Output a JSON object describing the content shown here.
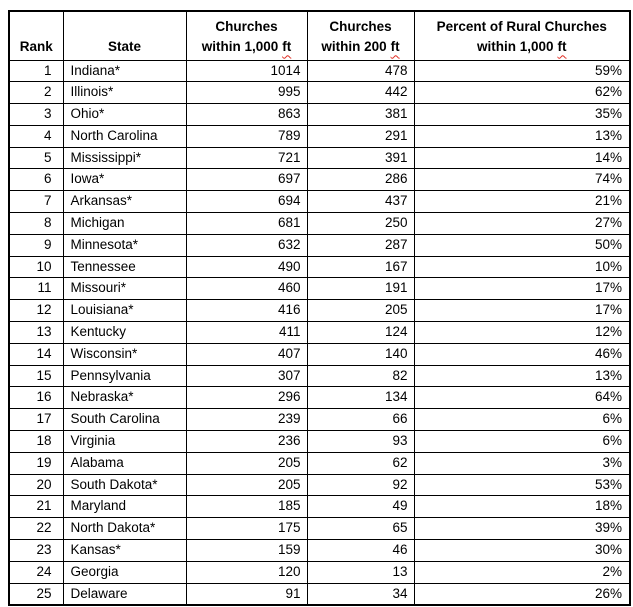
{
  "accent_colors": {
    "grid_line": "#000000",
    "text": "#000000",
    "spellcheck_underline": "#e02b20",
    "background": "#ffffff"
  },
  "table": {
    "headers": {
      "rank": "Rank",
      "state": "State",
      "churches_1000": {
        "line1": "Churches",
        "line2": "within 1,000",
        "unit": "ft"
      },
      "churches_200": {
        "line1": "Churches",
        "line2": "within 200",
        "unit": "ft"
      },
      "percent_rural": {
        "line1": "Percent of Rural Churches",
        "line2": "within 1,000",
        "unit": "ft"
      }
    },
    "field_order": [
      "rank",
      "state",
      "within_1000_ft",
      "within_200_ft",
      "percent_rural"
    ],
    "rows": [
      {
        "rank": "1",
        "state": "Indiana*",
        "within_1000_ft": "1014",
        "within_200_ft": "478",
        "percent_rural": "59%"
      },
      {
        "rank": "2",
        "state": "Illinois*",
        "within_1000_ft": "995",
        "within_200_ft": "442",
        "percent_rural": "62%"
      },
      {
        "rank": "3",
        "state": "Ohio*",
        "within_1000_ft": "863",
        "within_200_ft": "381",
        "percent_rural": "35%"
      },
      {
        "rank": "4",
        "state": "North Carolina",
        "within_1000_ft": "789",
        "within_200_ft": "291",
        "percent_rural": "13%"
      },
      {
        "rank": "5",
        "state": "Mississippi*",
        "within_1000_ft": "721",
        "within_200_ft": "391",
        "percent_rural": "14%"
      },
      {
        "rank": "6",
        "state": "Iowa*",
        "within_1000_ft": "697",
        "within_200_ft": "286",
        "percent_rural": "74%"
      },
      {
        "rank": "7",
        "state": "Arkansas*",
        "within_1000_ft": "694",
        "within_200_ft": "437",
        "percent_rural": "21%"
      },
      {
        "rank": "8",
        "state": "Michigan",
        "within_1000_ft": "681",
        "within_200_ft": "250",
        "percent_rural": "27%"
      },
      {
        "rank": "9",
        "state": "Minnesota*",
        "within_1000_ft": "632",
        "within_200_ft": "287",
        "percent_rural": "50%"
      },
      {
        "rank": "10",
        "state": "Tennessee",
        "within_1000_ft": "490",
        "within_200_ft": "167",
        "percent_rural": "10%"
      },
      {
        "rank": "11",
        "state": "Missouri*",
        "within_1000_ft": "460",
        "within_200_ft": "191",
        "percent_rural": "17%"
      },
      {
        "rank": "12",
        "state": "Louisiana*",
        "within_1000_ft": "416",
        "within_200_ft": "205",
        "percent_rural": "17%"
      },
      {
        "rank": "13",
        "state": "Kentucky",
        "within_1000_ft": "411",
        "within_200_ft": "124",
        "percent_rural": "12%"
      },
      {
        "rank": "14",
        "state": "Wisconsin*",
        "within_1000_ft": "407",
        "within_200_ft": "140",
        "percent_rural": "46%"
      },
      {
        "rank": "15",
        "state": "Pennsylvania",
        "within_1000_ft": "307",
        "within_200_ft": "82",
        "percent_rural": "13%"
      },
      {
        "rank": "16",
        "state": "Nebraska*",
        "within_1000_ft": "296",
        "within_200_ft": "134",
        "percent_rural": "64%"
      },
      {
        "rank": "17",
        "state": "South Carolina",
        "within_1000_ft": "239",
        "within_200_ft": "66",
        "percent_rural": "6%"
      },
      {
        "rank": "18",
        "state": "Virginia",
        "within_1000_ft": "236",
        "within_200_ft": "93",
        "percent_rural": "6%"
      },
      {
        "rank": "19",
        "state": "Alabama",
        "within_1000_ft": "205",
        "within_200_ft": "62",
        "percent_rural": "3%"
      },
      {
        "rank": "20",
        "state": "South Dakota*",
        "within_1000_ft": "205",
        "within_200_ft": "92",
        "percent_rural": "53%"
      },
      {
        "rank": "21",
        "state": "Maryland",
        "within_1000_ft": "185",
        "within_200_ft": "49",
        "percent_rural": "18%"
      },
      {
        "rank": "22",
        "state": "North Dakota*",
        "within_1000_ft": "175",
        "within_200_ft": "65",
        "percent_rural": "39%"
      },
      {
        "rank": "23",
        "state": "Kansas*",
        "within_1000_ft": "159",
        "within_200_ft": "46",
        "percent_rural": "30%"
      },
      {
        "rank": "24",
        "state": "Georgia",
        "within_1000_ft": "120",
        "within_200_ft": "13",
        "percent_rural": "2%"
      },
      {
        "rank": "25",
        "state": "Delaware",
        "within_1000_ft": "91",
        "within_200_ft": "34",
        "percent_rural": "26%"
      }
    ]
  }
}
